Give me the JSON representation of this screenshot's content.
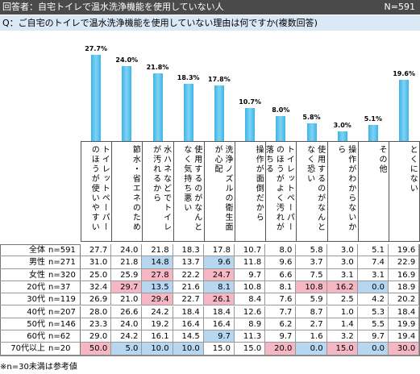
{
  "header": {
    "respondents": "回答者：自宅トイレで温水洗浄機能を使用していない人",
    "n": "N=591"
  },
  "question": "Q：ご自宅のトイレで温水洗浄機能を使用していない理由は何ですか(複数回答)",
  "chart_data": {
    "type": "bar",
    "color": "#3cb4e6",
    "categories": [
      "トイレットペーパーのほうが使いやすい",
      "節水・省エネのため",
      "水ハネなどでトイレが汚れるから",
      "使用するのがなんとなく気持ち悪い",
      "洗浄ノズルの衛生面が心配",
      "操作が面倒だから",
      "トイレットペーパーのほうがよく汚れが落ちる",
      "使用するのがなんとなく恐い",
      "操作がわからないから",
      "その他",
      "とくにない"
    ],
    "values": [
      27.7,
      24.0,
      21.8,
      18.3,
      17.8,
      10.7,
      8.0,
      5.8,
      3.0,
      5.1,
      19.6
    ],
    "value_labels": [
      "27.7%",
      "24.0%",
      "21.8%",
      "18.3%",
      "17.8%",
      "10.7%",
      "8.0%",
      "5.8%",
      "3.0%",
      "5.1%",
      "19.6%"
    ]
  },
  "table": {
    "highlight_colors": {
      "high": "#f6b7c5",
      "low": "#b7d6f0"
    },
    "rows": [
      {
        "label": "全体",
        "n": "n=591",
        "cells": [
          "27.7",
          "24.0",
          "21.8",
          "18.3",
          "17.8",
          "10.7",
          "8.0",
          "5.8",
          "3.0",
          "5.1",
          "19.6"
        ]
      },
      {
        "label": "男性",
        "n": "n=271",
        "cells": [
          "31.0",
          "21.8",
          "14.8",
          "13.7",
          "9.6",
          "11.8",
          "9.6",
          "3.7",
          "3.0",
          "7.4",
          "22.9"
        ],
        "highlight": [
          null,
          null,
          "low",
          null,
          "low",
          null,
          null,
          null,
          null,
          null,
          null
        ]
      },
      {
        "label": "女性",
        "n": "n=320",
        "cells": [
          "25.0",
          "25.9",
          "27.8",
          "22.2",
          "24.7",
          "9.7",
          "6.6",
          "7.5",
          "3.1",
          "3.1",
          "16.9"
        ],
        "highlight": [
          null,
          null,
          "high",
          null,
          "high",
          null,
          null,
          null,
          null,
          null,
          null
        ]
      },
      {
        "label": "20代",
        "n": "n=37",
        "cells": [
          "32.4",
          "29.7",
          "13.5",
          "21.6",
          "8.1",
          "10.8",
          "8.1",
          "10.8",
          "16.2",
          "0.0",
          "18.9"
        ],
        "highlight": [
          null,
          "high",
          "low",
          null,
          "low",
          null,
          null,
          "high",
          "high",
          "low",
          null
        ]
      },
      {
        "label": "30代",
        "n": "n=119",
        "cells": [
          "26.9",
          "21.0",
          "29.4",
          "22.7",
          "26.1",
          "8.4",
          "7.6",
          "5.9",
          "2.5",
          "4.2",
          "20.2"
        ],
        "highlight": [
          null,
          null,
          "high",
          null,
          "high",
          null,
          null,
          null,
          null,
          null,
          null
        ]
      },
      {
        "label": "40代",
        "n": "n=207",
        "cells": [
          "28.0",
          "26.6",
          "24.2",
          "18.4",
          "18.4",
          "12.6",
          "7.7",
          "8.7",
          "1.0",
          "5.3",
          "18.4"
        ]
      },
      {
        "label": "50代",
        "n": "n=146",
        "cells": [
          "23.3",
          "24.0",
          "19.2",
          "16.4",
          "16.4",
          "8.9",
          "6.2",
          "2.7",
          "1.4",
          "5.5",
          "19.9"
        ]
      },
      {
        "label": "60代",
        "n": "n=62",
        "cells": [
          "29.0",
          "24.2",
          "16.1",
          "14.5",
          "9.7",
          "11.3",
          "9.7",
          "1.6",
          "3.2",
          "9.7",
          "19.4"
        ],
        "highlight": [
          null,
          null,
          null,
          null,
          "low",
          null,
          null,
          null,
          null,
          null,
          null
        ]
      },
      {
        "label": "70代以上",
        "n": "n=20",
        "cells": [
          "50.0",
          "5.0",
          "10.0",
          "10.0",
          "15.0",
          "15.0",
          "20.0",
          "0.0",
          "15.0",
          "0.0",
          "30.0"
        ],
        "highlight": [
          "high",
          "low",
          "low",
          "low",
          null,
          null,
          "high",
          "low",
          "high",
          "low",
          "high"
        ]
      }
    ]
  },
  "footnote": "※n=30未満は参考値"
}
